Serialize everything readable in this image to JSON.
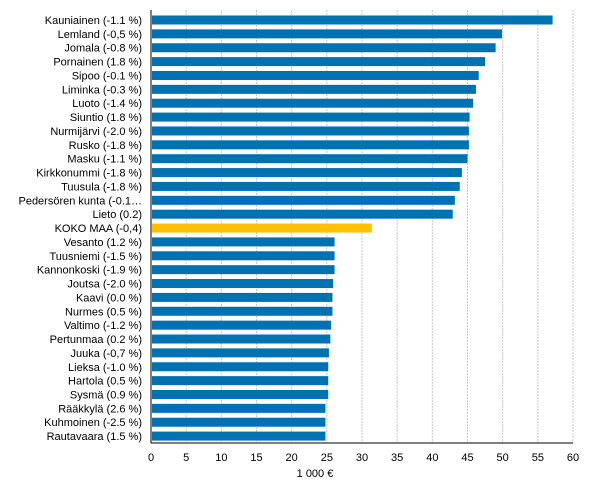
{
  "chart_data": {
    "type": "bar",
    "orientation": "horizontal",
    "title": "",
    "xlabel": "1 000 €",
    "ylabel": "",
    "xlim": [
      0,
      60
    ],
    "xticks": [
      "0",
      "5",
      "10",
      "15",
      "20",
      "25",
      "30",
      "35",
      "40",
      "45",
      "50",
      "55",
      "60"
    ],
    "grid": "vertical dashed",
    "colors": {
      "default": "#0072b2",
      "highlight": "#ffc000",
      "grid": "#c8c8c8",
      "axis": "#000000"
    },
    "categories": [
      "Kauniainen (-1.1 %)",
      "Lemland (-0,5 %)",
      "Jomala (-0.8 %)",
      "Pornainen (1.8 %)",
      "Sipoo (-0.1 %)",
      "Liminka (-0.3 %)",
      "Luoto (-1.4 %)",
      "Siuntio (1.8 %)",
      "Nurmijärvi (-2.0 %)",
      "Rusko (-1.8 %)",
      "Masku (-1.1 %)",
      "Kirkkonummi (-1.8 %)",
      "Tuusula (-1.8 %)",
      "Pedersören kunta (-0.1…",
      "Lieto (0.2)",
      "KOKO MAA (-0,4)",
      "Vesanto (1.2 %)",
      "Tuusniemi (-1.5 %)",
      "Kannonkoski (-1.9 %)",
      "Joutsa (-2.0 %)",
      "Kaavi (0.0 %)",
      "Nurmes (0.5 %)",
      "Valtimo (-1.2 %)",
      "Pertunmaa (0.2 %)",
      "Juuka (-0,7 %)",
      "Lieksa (-1.0 %)",
      "Hartola (0.5 %)",
      "Sysmä (0.9 %)",
      "Rääkkylä (2.6 %)",
      "Kuhmoinen (-2.5 %)",
      "Rautavaara (1.5 %)"
    ],
    "values": [
      57.1,
      49.9,
      49.0,
      47.5,
      46.6,
      46.2,
      45.8,
      45.3,
      45.2,
      45.2,
      45.0,
      44.2,
      43.9,
      43.2,
      42.9,
      31.4,
      26.1,
      26.1,
      26.1,
      25.9,
      25.8,
      25.8,
      25.6,
      25.5,
      25.3,
      25.2,
      25.2,
      25.2,
      24.8,
      24.8,
      24.8
    ],
    "highlight": "KOKO MAA (-0,4)"
  }
}
